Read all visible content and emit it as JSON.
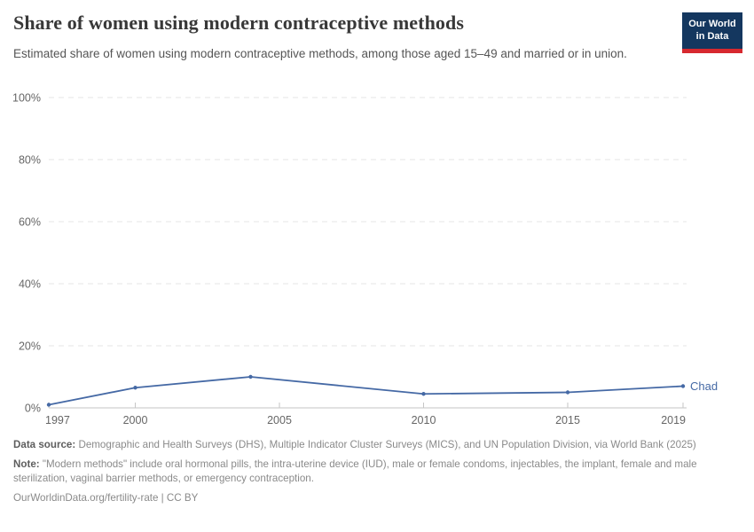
{
  "header": {
    "title": "Share of women using modern contraceptive methods",
    "subtitle": "Estimated share of women using modern contraceptive methods, among those aged 15–49 and married or in union."
  },
  "logo": {
    "line1": "Our World",
    "line2": "in Data",
    "bg_color": "#14375f",
    "accent_color": "#d7292f"
  },
  "chart_data": {
    "type": "line",
    "title": "Share of women using modern contraceptive methods",
    "xlabel": "",
    "ylabel": "",
    "xlim": [
      1997,
      2019
    ],
    "ylim": [
      0,
      100
    ],
    "grid": "horizontal-dashed",
    "legend": "end-of-line-label",
    "x_ticks": [
      {
        "value": 1997,
        "label": "1997"
      },
      {
        "value": 2000,
        "label": "2000"
      },
      {
        "value": 2005,
        "label": "2005"
      },
      {
        "value": 2010,
        "label": "2010"
      },
      {
        "value": 2015,
        "label": "2015"
      },
      {
        "value": 2019,
        "label": "2019"
      }
    ],
    "y_ticks": [
      {
        "value": 0,
        "label": "0%"
      },
      {
        "value": 20,
        "label": "20%"
      },
      {
        "value": 40,
        "label": "40%"
      },
      {
        "value": 60,
        "label": "60%"
      },
      {
        "value": 80,
        "label": "80%"
      },
      {
        "value": 100,
        "label": "100%"
      }
    ],
    "series": [
      {
        "name": "Chad",
        "color": "#4569a5",
        "points": [
          [
            1997,
            1
          ],
          [
            2000,
            6.5
          ],
          [
            2004,
            10
          ],
          [
            2010,
            4.5
          ],
          [
            2015,
            5
          ],
          [
            2019,
            7
          ]
        ]
      }
    ]
  },
  "footer": {
    "data_source_label": "Data source:",
    "data_source_text": " Demographic and Health Surveys (DHS), Multiple Indicator Cluster Surveys (MICS), and UN Population Division, via World Bank (2025)",
    "note_label": "Note:",
    "note_text": " \"Modern methods\" include oral hormonal pills, the intra-uterine device (IUD), male or female condoms, injectables, the implant, female and male sterilization, vaginal barrier methods, or emergency contraception.",
    "url": "OurWorldinData.org/fertility-rate | CC BY"
  }
}
